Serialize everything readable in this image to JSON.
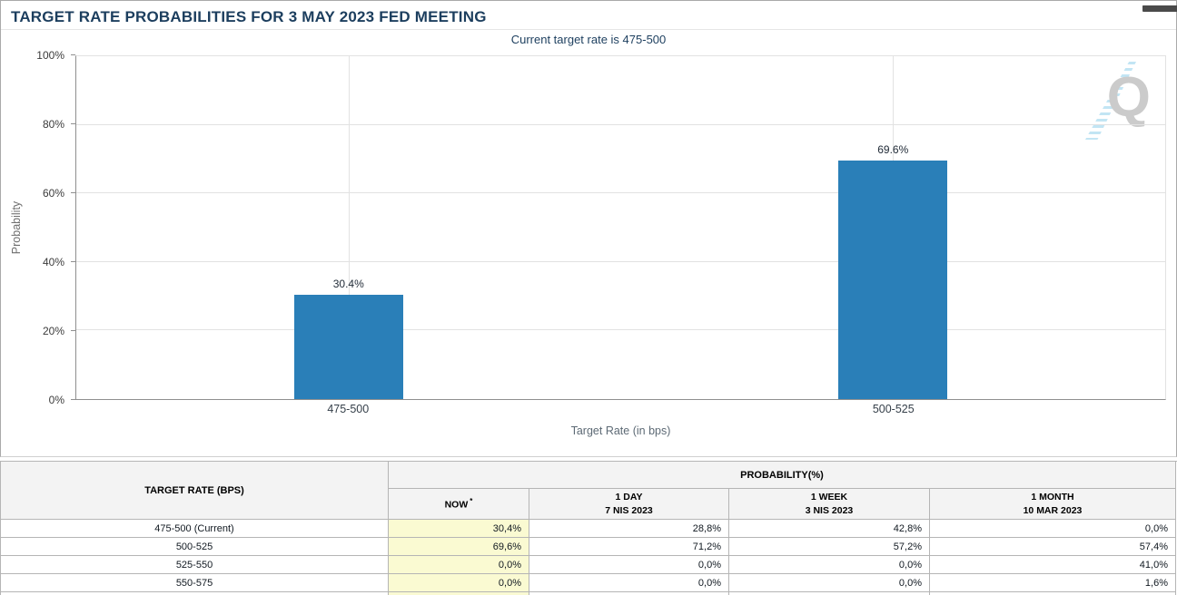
{
  "header": {
    "title": "TARGET RATE PROBABILITIES FOR 3 MAY 2023 FED MEETING"
  },
  "chart": {
    "subtitle": "Current target rate is 475-500",
    "ylabel": "Probability",
    "xlabel": "Target Rate (in bps)",
    "watermark_letter": "Q"
  },
  "chart_data": {
    "type": "bar",
    "title": "Target Rate Probabilities for 3 May 2023 Fed Meeting",
    "subtitle": "Current target rate is 475-500",
    "categories": [
      "475-500",
      "500-525"
    ],
    "values": [
      30.4,
      69.6
    ],
    "value_labels": [
      "30.4%",
      "69.6%"
    ],
    "xlabel": "Target Rate (in bps)",
    "ylabel": "Probability",
    "ylim": [
      0,
      100
    ],
    "ytick_step": 20,
    "ytick_labels": [
      "0%",
      "20%",
      "40%",
      "60%",
      "80%",
      "100%"
    ],
    "grid": true,
    "bar_color": "#2a7fb8"
  },
  "table": {
    "header": {
      "target_rate": "TARGET RATE (BPS)",
      "probability": "PROBABILITY(%)",
      "subcolumns": [
        {
          "label": "NOW",
          "sup": "*",
          "date": ""
        },
        {
          "label": "1 DAY",
          "sup": "",
          "date": "7 NIS 2023"
        },
        {
          "label": "1 WEEK",
          "sup": "",
          "date": "3 NIS 2023"
        },
        {
          "label": "1 MONTH",
          "sup": "",
          "date": "10 MAR 2023"
        }
      ]
    },
    "rows": [
      {
        "rate": "475-500 (Current)",
        "values": [
          "30,4%",
          "28,8%",
          "42,8%",
          "0,0%"
        ]
      },
      {
        "rate": "500-525",
        "values": [
          "69,6%",
          "71,2%",
          "57,2%",
          "57,4%"
        ]
      },
      {
        "rate": "525-550",
        "values": [
          "0,0%",
          "0,0%",
          "0,0%",
          "41,0%"
        ]
      },
      {
        "rate": "550-575",
        "values": [
          "0,0%",
          "0,0%",
          "0,0%",
          "1,6%"
        ]
      }
    ]
  }
}
